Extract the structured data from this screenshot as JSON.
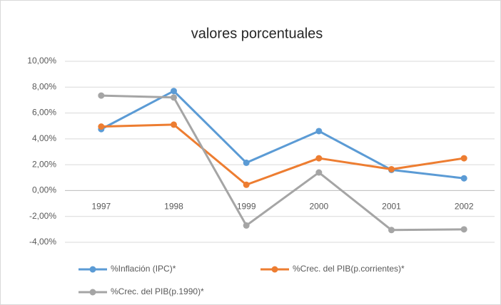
{
  "chart_data": {
    "type": "line",
    "title": "valores porcentuales",
    "categories": [
      "1997",
      "1998",
      "1999",
      "2000",
      "2001",
      "2002"
    ],
    "series": [
      {
        "name": "%Inflación (IPC)*",
        "color": "#5b9bd5",
        "values": [
          4.75,
          7.7,
          2.15,
          4.6,
          1.6,
          0.95
        ]
      },
      {
        "name": "%Crec. del PIB(p.corrientes)*",
        "color": "#ed7d31",
        "values": [
          4.95,
          5.1,
          0.45,
          2.5,
          1.65,
          2.5
        ]
      },
      {
        "name": "%Crec. del PIB(p.1990)*",
        "color": "#a5a5a5",
        "values": [
          7.35,
          7.2,
          -2.7,
          1.4,
          -3.05,
          -3.0
        ]
      }
    ],
    "ylim": [
      -4,
      10
    ],
    "yticks": [
      {
        "value": -4,
        "label": "-4,00%"
      },
      {
        "value": -2,
        "label": "-2,00%"
      },
      {
        "value": 0,
        "label": "0,00%"
      },
      {
        "value": 2,
        "label": "2,00%"
      },
      {
        "value": 4,
        "label": "4,00%"
      },
      {
        "value": 6,
        "label": "6,00%"
      },
      {
        "value": 8,
        "label": "8,00%"
      },
      {
        "value": 10,
        "label": "10,00%"
      }
    ],
    "grid": true,
    "legend": "bottom"
  }
}
